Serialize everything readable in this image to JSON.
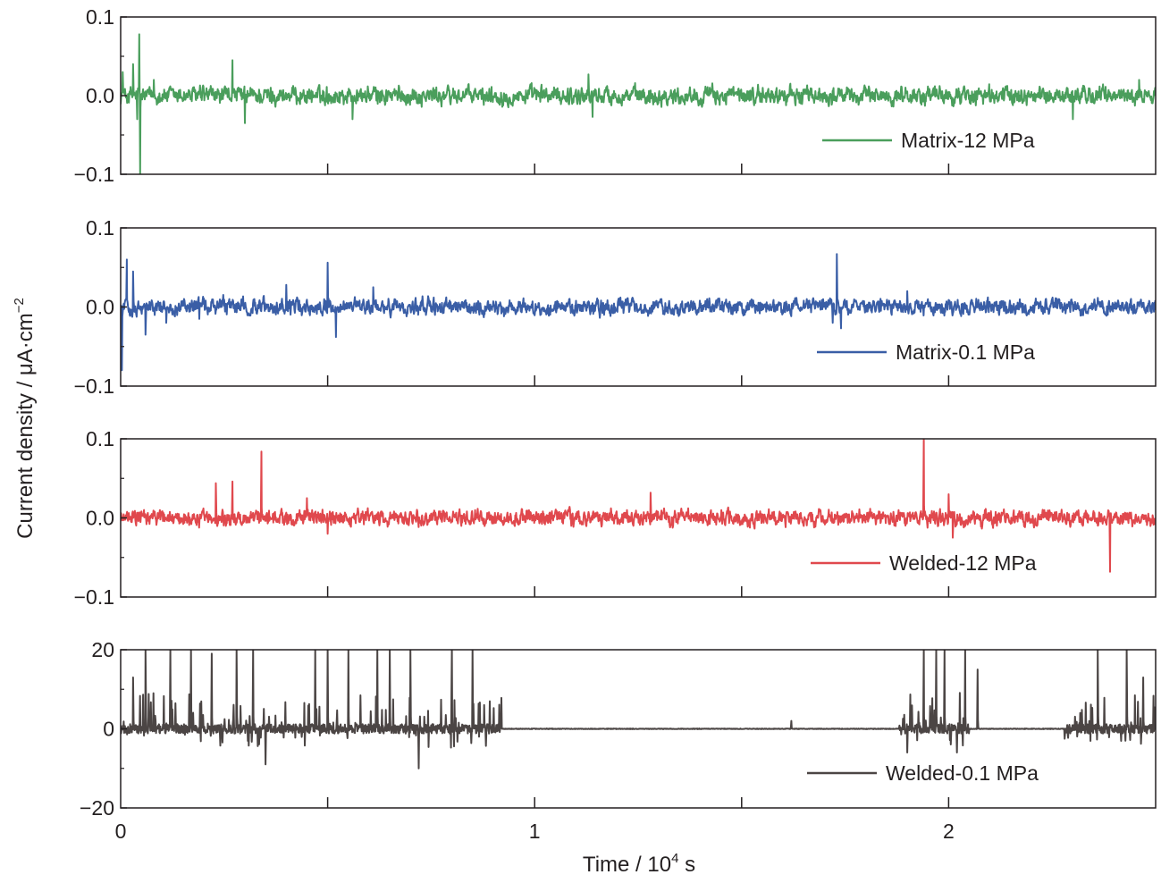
{
  "chart_data": {
    "type": "line",
    "xlabel": "Time / 10",
    "xlabel_sup": "4",
    "xlabel_unit": " s",
    "ylabel": "Current density / μA·cm",
    "ylabel_sup": "−2",
    "xlim": [
      0,
      2.5
    ],
    "x_ticks": [
      0,
      1,
      2
    ],
    "x_tick_labels": [
      "0",
      "1",
      "2"
    ],
    "x_minor_ticks": [
      0.5,
      1.5
    ],
    "grid": false,
    "legend_position": "bottom-right",
    "panels": [
      {
        "series": [
          {
            "name": "Matrix-12 MPa",
            "color": "#4a9e5c"
          }
        ],
        "ylim": [
          -0.1,
          0.1
        ],
        "y_ticks": [
          0.1,
          0.0,
          -0.1
        ],
        "y_tick_labels": [
          "0.1",
          "0.0",
          "−0.1"
        ],
        "noise_amplitude": 0.008,
        "features": [
          {
            "x": 0.005,
            "y": 0.03
          },
          {
            "x": 0.03,
            "y": 0.04
          },
          {
            "x": 0.04,
            "y": -0.03
          },
          {
            "x": 0.045,
            "y": 0.078
          },
          {
            "x": 0.047,
            "y": -0.1
          },
          {
            "x": 0.08,
            "y": 0.02
          },
          {
            "x": 0.27,
            "y": 0.045
          },
          {
            "x": 0.3,
            "y": -0.035
          },
          {
            "x": 0.56,
            "y": -0.03
          },
          {
            "x": 1.13,
            "y": 0.027
          },
          {
            "x": 1.14,
            "y": -0.027
          },
          {
            "x": 2.3,
            "y": -0.03
          },
          {
            "x": 2.46,
            "y": 0.02
          }
        ]
      },
      {
        "series": [
          {
            "name": "Matrix-0.1 MPa",
            "color": "#3a5ea6"
          }
        ],
        "ylim": [
          -0.1,
          0.1
        ],
        "y_ticks": [
          0.1,
          0.0,
          -0.1
        ],
        "y_tick_labels": [
          "0.1",
          "0.0",
          "−0.1"
        ],
        "noise_amplitude": 0.007,
        "features": [
          {
            "x": 0.003,
            "y": -0.08
          },
          {
            "x": 0.015,
            "y": 0.06
          },
          {
            "x": 0.03,
            "y": 0.045
          },
          {
            "x": 0.06,
            "y": -0.035
          },
          {
            "x": 0.11,
            "y": -0.02
          },
          {
            "x": 0.19,
            "y": -0.015
          },
          {
            "x": 0.4,
            "y": 0.028
          },
          {
            "x": 0.5,
            "y": 0.056
          },
          {
            "x": 0.52,
            "y": -0.038
          },
          {
            "x": 0.61,
            "y": 0.025
          },
          {
            "x": 1.72,
            "y": -0.02
          },
          {
            "x": 1.73,
            "y": 0.067
          },
          {
            "x": 1.74,
            "y": -0.027
          },
          {
            "x": 1.9,
            "y": 0.02
          }
        ]
      },
      {
        "series": [
          {
            "name": "Welded-12 MPa",
            "color": "#e0484d"
          }
        ],
        "ylim": [
          -0.1,
          0.1
        ],
        "y_ticks": [
          0.1,
          0.0,
          -0.1
        ],
        "y_tick_labels": [
          "0.1",
          "0.0",
          "−0.1"
        ],
        "noise_amplitude": 0.007,
        "features": [
          {
            "x": 0.23,
            "y": 0.044
          },
          {
            "x": 0.27,
            "y": 0.046
          },
          {
            "x": 0.34,
            "y": 0.084
          },
          {
            "x": 0.45,
            "y": 0.025
          },
          {
            "x": 0.5,
            "y": -0.02
          },
          {
            "x": 1.28,
            "y": 0.032
          },
          {
            "x": 1.94,
            "y": 0.1
          },
          {
            "x": 2.0,
            "y": 0.03
          },
          {
            "x": 2.01,
            "y": -0.025
          },
          {
            "x": 2.39,
            "y": -0.068
          }
        ]
      },
      {
        "series": [
          {
            "name": "Welded-0.1 MPa",
            "color": "#4b4544"
          }
        ],
        "ylim": [
          -20,
          20
        ],
        "y_ticks": [
          20,
          0,
          -20
        ],
        "y_tick_labels": [
          "20",
          "0",
          "−20"
        ],
        "noise_amplitude": 0.0,
        "burst_ranges": [
          [
            0.0,
            0.92
          ],
          [
            1.88,
            2.05
          ],
          [
            2.28,
            2.5
          ]
        ],
        "features": [
          {
            "x": 0.03,
            "y": 13
          },
          {
            "x": 0.06,
            "y": 20
          },
          {
            "x": 0.12,
            "y": 20
          },
          {
            "x": 0.17,
            "y": 20
          },
          {
            "x": 0.22,
            "y": 19
          },
          {
            "x": 0.28,
            "y": 20
          },
          {
            "x": 0.32,
            "y": 20
          },
          {
            "x": 0.35,
            "y": -9
          },
          {
            "x": 0.47,
            "y": 20
          },
          {
            "x": 0.5,
            "y": 20
          },
          {
            "x": 0.55,
            "y": 20
          },
          {
            "x": 0.62,
            "y": 20
          },
          {
            "x": 0.65,
            "y": 20
          },
          {
            "x": 0.7,
            "y": 20
          },
          {
            "x": 0.72,
            "y": -10
          },
          {
            "x": 0.8,
            "y": 20
          },
          {
            "x": 0.85,
            "y": 20
          },
          {
            "x": 1.62,
            "y": 2
          },
          {
            "x": 1.9,
            "y": 20
          },
          {
            "x": 1.94,
            "y": 20
          },
          {
            "x": 1.97,
            "y": 20
          },
          {
            "x": 1.99,
            "y": 20
          },
          {
            "x": 2.04,
            "y": 20
          },
          {
            "x": 2.07,
            "y": 15
          },
          {
            "x": 2.36,
            "y": 20
          },
          {
            "x": 2.43,
            "y": 20
          },
          {
            "x": 2.47,
            "y": 13
          },
          {
            "x": 1.9,
            "y": -6
          },
          {
            "x": 2.02,
            "y": -6
          }
        ]
      }
    ]
  }
}
